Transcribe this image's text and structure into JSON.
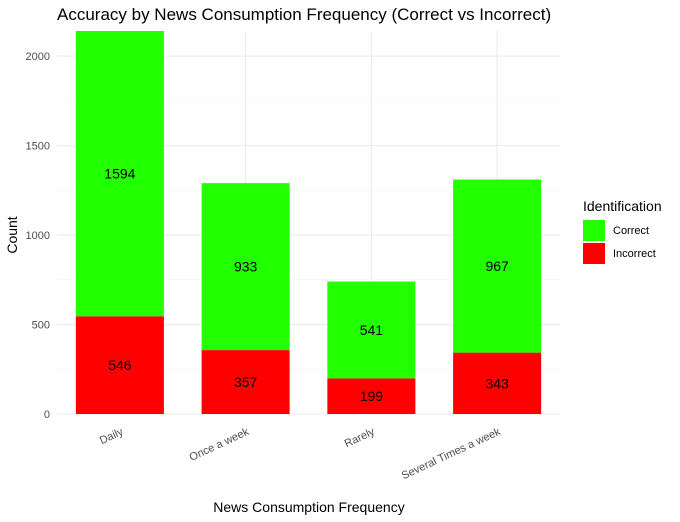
{
  "chart_data": {
    "type": "bar",
    "stacked": true,
    "title": "Accuracy by News Consumption Frequency (Correct vs Incorrect)",
    "xlabel": "News Consumption Frequency",
    "ylabel": "Count",
    "categories": [
      "Daily",
      "Once a week",
      "Rarely",
      "Several Times a week"
    ],
    "series": [
      {
        "name": "Incorrect",
        "values": [
          546,
          357,
          199,
          343
        ],
        "color": "#ff0000"
      },
      {
        "name": "Correct",
        "values": [
          1594,
          933,
          541,
          967
        ],
        "color": "#22ff00"
      }
    ],
    "ylim": [
      0,
      2140
    ],
    "yticks": [
      0,
      500,
      1000,
      1500,
      2000
    ],
    "grid": true,
    "legend": {
      "title": "Identification",
      "position": "right",
      "entries": [
        "Correct",
        "Incorrect"
      ]
    }
  }
}
